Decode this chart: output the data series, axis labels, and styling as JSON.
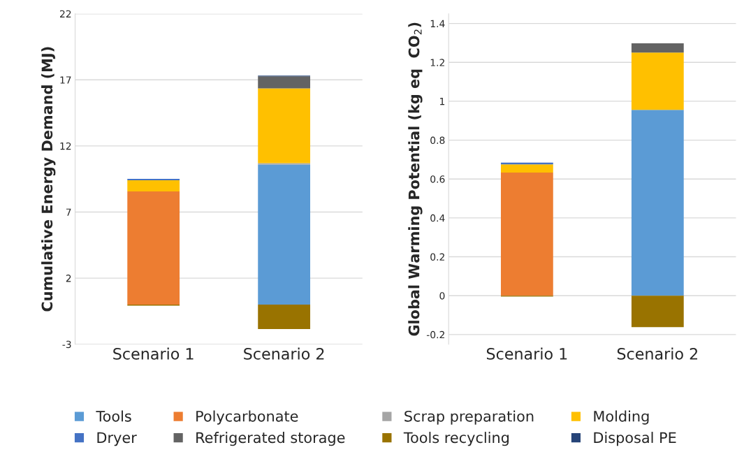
{
  "chart_data": [
    {
      "type": "bar",
      "stacked": true,
      "categories": [
        "Scenario 1",
        "Scenario 2"
      ],
      "ylabel": "Cumulative Energy Demand (MJ)",
      "ylim": [
        -3,
        22
      ],
      "yticks": [
        -3,
        2,
        7,
        12,
        17,
        22
      ],
      "grid": "y",
      "legend": "bottom",
      "series": [
        {
          "name": "Tools",
          "color": "#5b9bd5",
          "values": [
            0,
            10.6
          ]
        },
        {
          "name": "Polycarbonate",
          "color": "#ed7d31",
          "values": [
            8.56,
            0
          ]
        },
        {
          "name": "Scrap preparation",
          "color": "#a5a5a5",
          "values": [
            null,
            0.1
          ]
        },
        {
          "name": "Molding",
          "color": "#ffc000",
          "values": [
            0.85,
            5.65
          ]
        },
        {
          "name": "Dryer",
          "color": "#4472c4",
          "values": [
            0.1,
            0
          ]
        },
        {
          "name": "Refrigerated storage",
          "color": "#636363",
          "values": [
            0,
            0.92
          ]
        },
        {
          "name": "Tools recycling",
          "color": "#997300",
          "values": [
            -0.08,
            -1.85
          ]
        },
        {
          "name": "Disposal PE",
          "color": "#264478",
          "values": [
            0,
            0.05
          ]
        }
      ]
    },
    {
      "type": "bar",
      "stacked": true,
      "categories": [
        "Scenario 1",
        "Scenario 2"
      ],
      "ylabel": "Global Warming Potential (kg eq  CO$_{2}$)",
      "ylim": [
        -0.25,
        1.45
      ],
      "yticks": [
        {
          "value": -0.2,
          "label": "-0.2"
        },
        0,
        0.2,
        0.4,
        0.6,
        0.8,
        1,
        1.2,
        1.4
      ],
      "grid": "y",
      "legend": "bottom",
      "series": [
        {
          "name": "Tools",
          "color": "#5b9bd5",
          "values": [
            0,
            0.956
          ]
        },
        {
          "name": "Polycarbonate",
          "color": "#ed7d31",
          "values": [
            0.633,
            0
          ]
        },
        {
          "name": "Scrap preparation",
          "color": "#a5a5a5",
          "values": [
            null,
            null
          ]
        },
        {
          "name": "Molding",
          "color": "#ffc000",
          "values": [
            0.042,
            0.294
          ]
        },
        {
          "name": "Dryer",
          "color": "#4472c4",
          "values": [
            0.009,
            0
          ]
        },
        {
          "name": "Refrigerated storage",
          "color": "#636363",
          "values": [
            0,
            0.048
          ]
        },
        {
          "name": "Tools recycling",
          "color": "#997300",
          "values": [
            -0.005,
            -0.162
          ]
        },
        {
          "name": "Disposal PE",
          "color": "#264478",
          "values": [
            0,
            null
          ]
        }
      ]
    }
  ]
}
